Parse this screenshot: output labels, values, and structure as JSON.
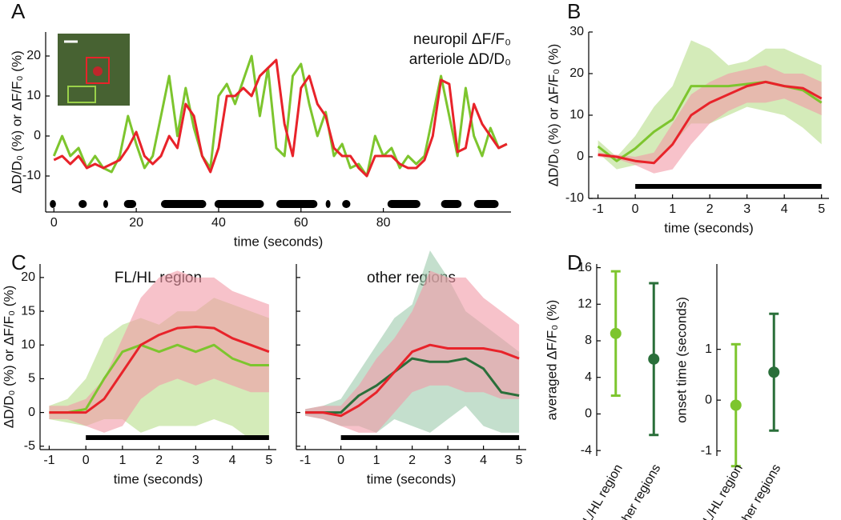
{
  "chart_data": [
    {
      "type": "line",
      "panel": "A",
      "x": [
        0,
        2,
        4,
        6,
        8,
        10,
        12,
        14,
        16,
        18,
        20,
        22,
        24,
        26,
        28,
        30,
        32,
        34,
        36,
        38,
        40,
        42,
        44,
        46,
        48,
        50,
        52,
        54,
        56,
        58,
        60,
        62,
        64,
        66,
        68,
        70,
        72,
        74,
        76,
        78,
        80,
        82,
        84,
        86,
        88,
        90,
        92,
        94,
        96,
        98,
        100,
        102,
        104,
        106,
        108,
        110
      ],
      "series": [
        {
          "name": "neuropil ΔF/F₀",
          "color": "#7dc52e",
          "values": [
            -5,
            0,
            -5,
            -3,
            -8,
            -5,
            -8,
            -9,
            -5,
            5,
            -2,
            -8,
            -5,
            5,
            15,
            0,
            12,
            2,
            -5,
            -8,
            10,
            13,
            8,
            14,
            20,
            5,
            17,
            -3,
            -5,
            15,
            18,
            8,
            0,
            6,
            -5,
            -2,
            -8,
            -7,
            -10,
            0,
            -5,
            -3,
            -8,
            -5,
            -7,
            -5,
            5,
            15,
            5,
            -5,
            12,
            0,
            -5,
            2,
            -3,
            -2
          ]
        },
        {
          "name": "arteriole ΔD/D₀",
          "color": "#e8232a",
          "values": [
            -6,
            -5,
            -7,
            -5,
            -8,
            -7,
            -8,
            -7,
            -6,
            -3,
            1,
            -5,
            -7,
            -5,
            0,
            -3,
            8,
            5,
            -5,
            -9,
            -3,
            10,
            10,
            12,
            10,
            15,
            17,
            19,
            3,
            -5,
            12,
            15,
            8,
            5,
            -3,
            -5,
            -5,
            -8,
            -10,
            -5,
            -5,
            -5,
            -7,
            -8,
            -8,
            -6,
            0,
            14,
            13,
            -4,
            -3,
            8,
            3,
            0,
            -3,
            -2
          ]
        }
      ],
      "events": [
        [
          -1,
          0.5
        ],
        [
          6,
          8
        ],
        [
          12,
          13
        ],
        [
          17,
          20
        ],
        [
          26,
          37
        ],
        [
          39,
          51
        ],
        [
          54,
          64
        ],
        [
          66,
          67
        ],
        [
          70,
          72
        ],
        [
          81,
          89
        ],
        [
          94,
          99
        ],
        [
          102,
          108
        ]
      ],
      "xlim": [
        -2,
        111
      ],
      "ylim": [
        -19,
        26
      ],
      "xticks": [
        0,
        20,
        40,
        60,
        80
      ],
      "yticks": [
        -10,
        0,
        10,
        20
      ],
      "xlabel": "time (seconds)",
      "ylabel": "ΔD/D₀ (%) or ΔF/F₀ (%)"
    },
    {
      "type": "line",
      "panel": "B",
      "x": [
        -1,
        -0.5,
        0,
        0.5,
        1,
        1.5,
        2,
        2.5,
        3,
        3.5,
        4,
        4.5,
        5
      ],
      "series": [
        {
          "color": "#7dc52e",
          "band": "#b8dd8a",
          "values": [
            2.5,
            -1,
            2,
            6,
            9,
            17,
            17,
            17,
            17.5,
            18,
            17,
            16,
            13
          ],
          "lower": [
            1,
            -3,
            -2,
            -1,
            3,
            8,
            8,
            10,
            12,
            11,
            10,
            7,
            3
          ],
          "upper": [
            4,
            0,
            5,
            12,
            17,
            28,
            26,
            22,
            23,
            26,
            26,
            24,
            22
          ]
        },
        {
          "color": "#e8232a",
          "band": "#f19aa6",
          "values": [
            0.5,
            0,
            -1,
            -1.5,
            3,
            10,
            13,
            15,
            17,
            18,
            17,
            16.5,
            14
          ],
          "lower": [
            0,
            -0.5,
            -2,
            -4,
            -3,
            3,
            8,
            11,
            13,
            13,
            14,
            12,
            10
          ],
          "upper": [
            1,
            0.5,
            0,
            1,
            8,
            15,
            18,
            20,
            21,
            22,
            20,
            20,
            18
          ]
        }
      ],
      "stimulus": [
        0,
        5
      ],
      "xlim": [
        -1.25,
        5.2
      ],
      "ylim": [
        -10,
        30
      ],
      "xticks": [
        -1,
        0,
        1,
        2,
        3,
        4,
        5
      ],
      "yticks": [
        -10,
        0,
        10,
        20,
        30
      ],
      "xlabel": "time (seconds)",
      "ylabel": "ΔD/D₀ (%) or ΔF/F₀ (%)"
    },
    {
      "type": "line",
      "panel": "C",
      "title": "FL/HL region",
      "title_color": "#7dc52e",
      "x": [
        -1,
        -0.5,
        0,
        0.5,
        1,
        1.5,
        2,
        2.5,
        3,
        3.5,
        4,
        4.5,
        5
      ],
      "series": [
        {
          "color": "#7dc52e",
          "band": "#b8dd8a",
          "values": [
            0,
            0,
            0.5,
            5,
            9,
            10,
            9,
            10,
            9,
            10,
            8,
            7,
            7
          ],
          "lower": [
            -1,
            -1.5,
            -2,
            -1,
            -1,
            -3,
            -2,
            -2,
            -2,
            -1,
            -2,
            -4,
            -4
          ],
          "upper": [
            1,
            2,
            5,
            11,
            13,
            14,
            13,
            15,
            15,
            17,
            16,
            15,
            14
          ]
        },
        {
          "color": "#e8232a",
          "band": "#f19aa6",
          "values": [
            0,
            0,
            0,
            2,
            6,
            10,
            11.5,
            12.5,
            12.7,
            12.5,
            11,
            10,
            9
          ],
          "lower": [
            -1,
            -1,
            -2,
            -3,
            -2,
            2,
            4,
            5,
            4,
            5,
            4,
            3,
            3
          ],
          "upper": [
            1,
            1,
            2,
            5,
            11,
            17,
            20,
            21,
            20,
            20,
            18,
            17,
            16
          ]
        }
      ],
      "stimulus": [
        0,
        5
      ],
      "xlim": [
        -1.25,
        5.2
      ],
      "ylim": [
        -5.5,
        22
      ],
      "xticks": [
        -1,
        0,
        1,
        2,
        3,
        4,
        5
      ],
      "yticks": [
        -5,
        0,
        5,
        10,
        15,
        20
      ],
      "xlabel": "time (seconds)",
      "ylabel": "ΔD/D₀ (%) or ΔF/F₀ (%)"
    },
    {
      "type": "line",
      "title": "other regions",
      "title_color": "#2a6f3a",
      "show_ytick_labels": false,
      "x": [
        -1,
        -0.5,
        0,
        0.5,
        1,
        1.5,
        2,
        2.5,
        3,
        3.5,
        4,
        4.5,
        5
      ],
      "series": [
        {
          "color": "#2a6f3a",
          "band": "#9cc9ab",
          "values": [
            0,
            0,
            0,
            2.5,
            4,
            6,
            8,
            7.5,
            7.5,
            8,
            6.5,
            3,
            2.5
          ],
          "lower": [
            -0.5,
            -1,
            -2,
            -2,
            -3,
            -1,
            -2,
            -3,
            -1,
            1,
            -2,
            -3,
            -3
          ],
          "upper": [
            0.5,
            1,
            2,
            6,
            10,
            14,
            16,
            24,
            20,
            15,
            13,
            11,
            9
          ]
        },
        {
          "color": "#e8232a",
          "band": "#f19aa6",
          "values": [
            0,
            0,
            -0.5,
            1,
            3,
            6,
            9,
            10,
            9.5,
            9.5,
            9.5,
            9,
            8
          ],
          "lower": [
            -0.5,
            -1,
            -2,
            -3,
            -3,
            0,
            3,
            4,
            4,
            3,
            3,
            2,
            2
          ],
          "upper": [
            0.5,
            1,
            1,
            4,
            8,
            11,
            15,
            21,
            20,
            20,
            17,
            15,
            13
          ]
        }
      ],
      "stimulus": [
        0,
        5
      ],
      "xlim": [
        -1.25,
        5.2
      ],
      "ylim": [
        -5.5,
        22
      ],
      "xticks": [
        -1,
        0,
        1,
        2,
        3,
        4,
        5
      ],
      "yticks": [
        -5,
        0,
        5,
        10,
        15,
        20
      ],
      "xlabel": "time (seconds)"
    },
    {
      "type": "errorbar",
      "panel": "D",
      "categories": [
        "FL/HL region",
        "other regions"
      ],
      "values": [
        8.8,
        6.0
      ],
      "errors": [
        6.8,
        8.3
      ],
      "colors": [
        "#7dc52e",
        "#2a6f3a"
      ],
      "ylim": [
        -4.6,
        16.4
      ],
      "yticks": [
        -4,
        0,
        4,
        8,
        12,
        16
      ],
      "ylabel": "averaged ΔF/F₀ (%)"
    },
    {
      "type": "errorbar",
      "categories": [
        "FL/HL region",
        "other regions"
      ],
      "values": [
        -0.1,
        0.55
      ],
      "errors": [
        1.2,
        1.15
      ],
      "colors": [
        "#7dc52e",
        "#2a6f3a"
      ],
      "ylim": [
        -1.1,
        2.68
      ],
      "yticks": [
        -1,
        0,
        1
      ],
      "ylabel": "onset time (seconds)"
    }
  ]
}
